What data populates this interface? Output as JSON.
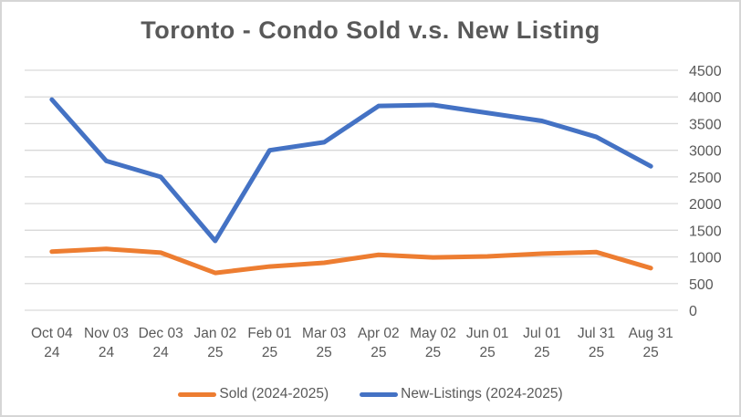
{
  "chart_data": {
    "type": "line",
    "title": "Toronto - Condo Sold v.s. New Listing",
    "categories": [
      "Oct 04 24",
      "Nov 03 24",
      "Dec 03 24",
      "Jan 02 25",
      "Feb 01 25",
      "Mar 03 25",
      "Apr 02 25",
      "May 02 25",
      "Jun 01 25",
      "Jul 01 25",
      "Jul 31 25",
      "Aug 31 25"
    ],
    "series": [
      {
        "name": "Sold (2024-2025)",
        "color": "#ED7D31",
        "values": [
          1100,
          1150,
          1080,
          700,
          820,
          890,
          1040,
          990,
          1010,
          1060,
          1090,
          790
        ]
      },
      {
        "name": "New-Listings (2024-2025)",
        "color": "#4472C4",
        "values": [
          3950,
          2800,
          2500,
          1300,
          3000,
          3150,
          3830,
          3850,
          3700,
          3550,
          3250,
          2700
        ]
      }
    ],
    "ylim": [
      0,
      4500
    ],
    "y_step": 500,
    "y_tick_labels": [
      "0",
      "500",
      "1000",
      "1500",
      "2000",
      "2500",
      "3000",
      "3500",
      "4000",
      "4500"
    ],
    "y_axis_side": "right",
    "grid": "horizontal",
    "legend_position": "bottom",
    "colors": {
      "text": "#595959",
      "gridline": "#D9D9D9",
      "background": "#FFFFFF"
    }
  }
}
